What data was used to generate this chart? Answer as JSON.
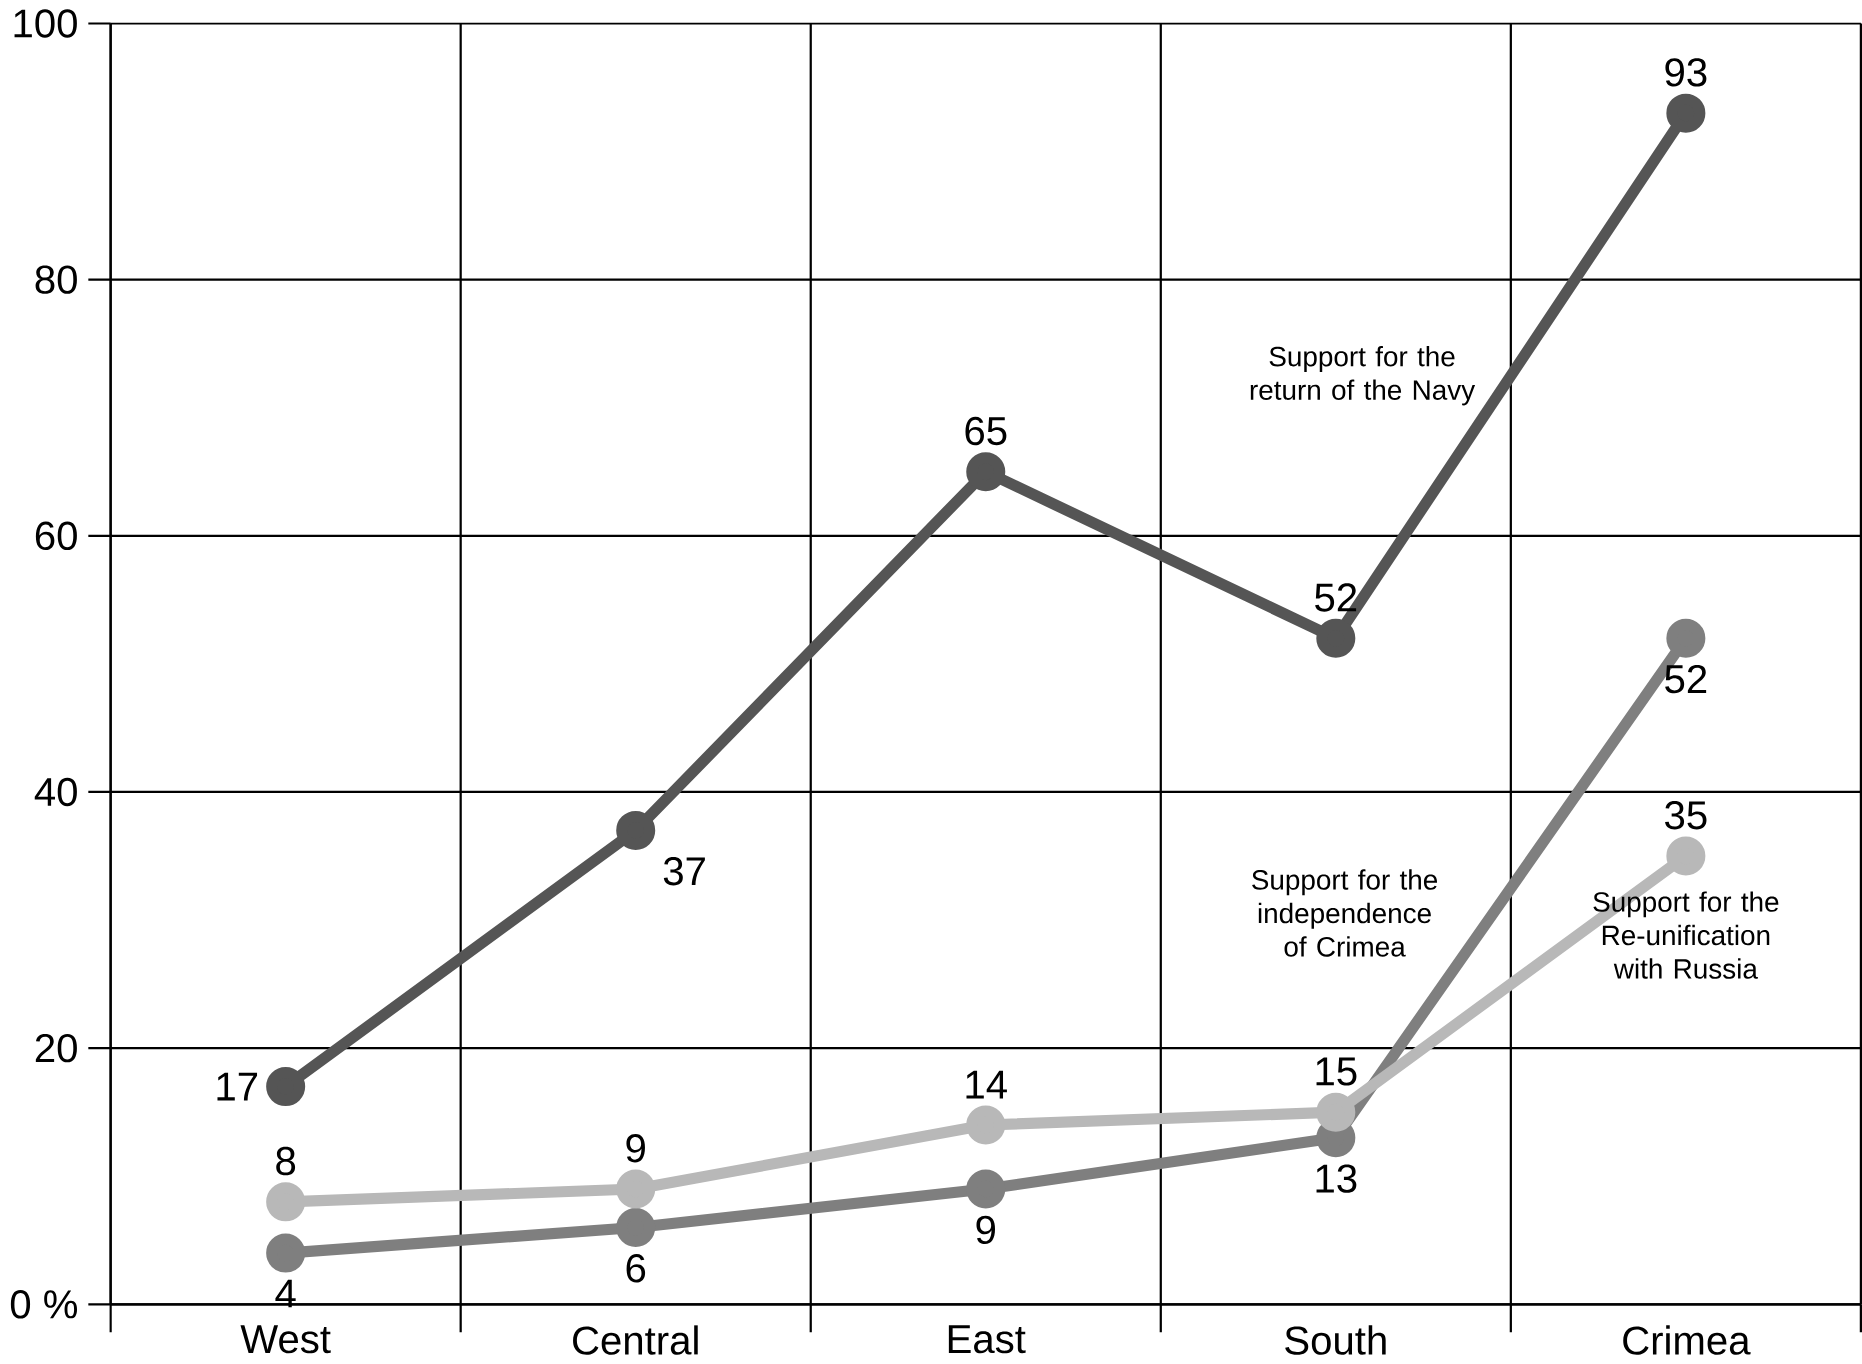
{
  "chart_data": {
    "type": "line",
    "categories": [
      "West",
      "Central",
      "East",
      "South",
      "Crimea"
    ],
    "series": [
      {
        "name": "Support for the return of the Navy",
        "color": "#555555",
        "values": [
          17,
          37,
          65,
          52,
          93
        ]
      },
      {
        "name": "Support for the independence of Crimea",
        "color": "#7f7f7f",
        "values": [
          4,
          6,
          9,
          13,
          52
        ]
      },
      {
        "name": "Support for the Re-unification with Russia",
        "color": "#b8b8b8",
        "values": [
          8,
          9,
          14,
          15,
          35
        ]
      }
    ],
    "ylim": [
      0,
      100
    ],
    "yticks": [
      {
        "value": 0,
        "label": "0 %"
      },
      20,
      40,
      60,
      80,
      100
    ],
    "grid": true,
    "marker": "circle",
    "line_style": "solid",
    "data_labels": true,
    "legend": false
  }
}
